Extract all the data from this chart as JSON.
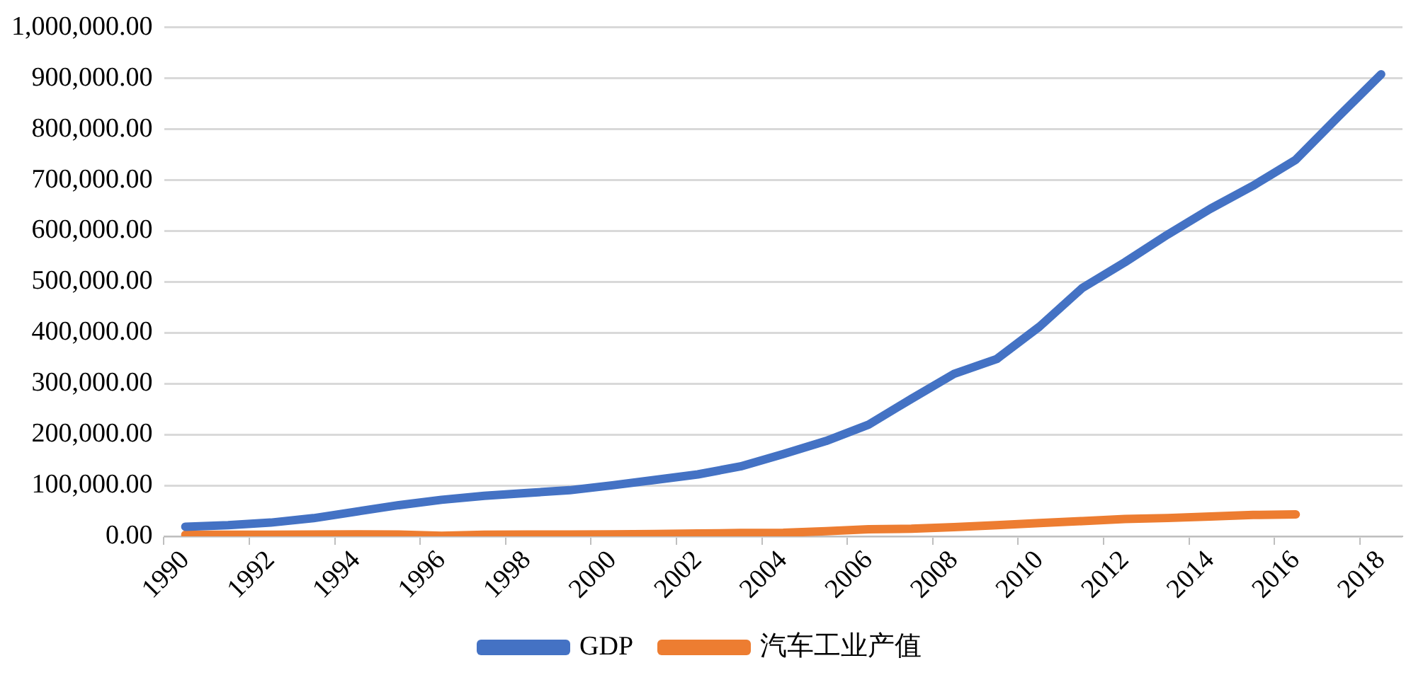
{
  "chart_data": {
    "type": "line",
    "categories": [
      "1990",
      null,
      "1992",
      null,
      "1994",
      null,
      "1996",
      null,
      "1998",
      null,
      "2000",
      null,
      "2002",
      null,
      "2004",
      null,
      "2006",
      null,
      "2008",
      null,
      "2010",
      null,
      "2012",
      null,
      "2014",
      null,
      "2016",
      null,
      "2018"
    ],
    "series": [
      {
        "name": "GDP",
        "color": "#4472c4",
        "values": [
          18900,
          22000,
          27000,
          35700,
          48600,
          61300,
          71800,
          79700,
          85200,
          90600,
          100300,
          110900,
          121700,
          137400,
          161800,
          187300,
          219400,
          270100,
          319200,
          348500,
          412100,
          487900,
          538600,
          593000,
          643600,
          688900,
          740000,
          825000,
          908000
        ]
      },
      {
        "name": "汽车工业产值",
        "color": "#ed7d31",
        "values": [
          3000,
          3000,
          3000,
          3500,
          4000,
          3500,
          1000,
          3000,
          3500,
          3500,
          4000,
          4500,
          5500,
          6500,
          7000,
          10000,
          14000,
          15000,
          18000,
          22000,
          26000,
          30000,
          34000,
          36000,
          39000,
          42000,
          43000,
          null,
          null
        ]
      }
    ],
    "ylim": [
      0,
      1000000
    ],
    "yticks": [
      {
        "value": 0,
        "label": "0.00"
      },
      {
        "value": 100000,
        "label": "100,000.00"
      },
      {
        "value": 200000,
        "label": "200,000.00"
      },
      {
        "value": 300000,
        "label": "300,000.00"
      },
      {
        "value": 400000,
        "label": "400,000.00"
      },
      {
        "value": 500000,
        "label": "500,000.00"
      },
      {
        "value": 600000,
        "label": "600,000.00"
      },
      {
        "value": 700000,
        "label": "700,000.00"
      },
      {
        "value": 800000,
        "label": "800,000.00"
      },
      {
        "value": 900000,
        "label": "900,000.00"
      },
      {
        "value": 1000000,
        "label": "1,000,000.00"
      }
    ],
    "grid": "y",
    "legend": "bottom"
  }
}
